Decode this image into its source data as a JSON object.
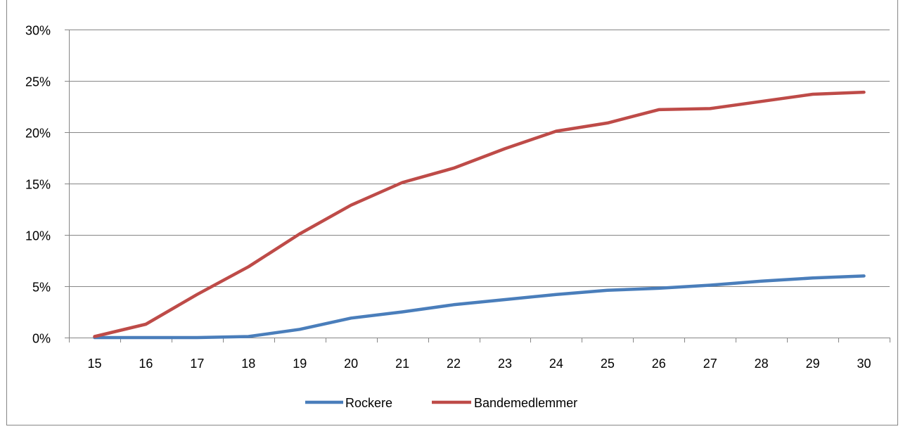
{
  "chart_data": {
    "type": "line",
    "title": "",
    "xlabel": "",
    "ylabel": "",
    "x": [
      15,
      16,
      17,
      18,
      19,
      20,
      21,
      22,
      23,
      24,
      25,
      26,
      27,
      28,
      29,
      30
    ],
    "ylim": [
      0,
      30
    ],
    "ytick_labels": [
      "0%",
      "5%",
      "10%",
      "15%",
      "20%",
      "25%",
      "30%"
    ],
    "ytick_values": [
      0,
      5,
      10,
      15,
      20,
      25,
      30
    ],
    "grid": true,
    "legend": "bottom",
    "series": [
      {
        "name": "Rockere",
        "color": "#4a7ebb",
        "values": [
          0.0,
          0.0,
          0.0,
          0.1,
          0.8,
          1.9,
          2.5,
          3.2,
          3.7,
          4.2,
          4.6,
          4.8,
          5.1,
          5.5,
          5.8,
          6.0
        ]
      },
      {
        "name": "Bandemedlemmer",
        "color": "#be4b48",
        "values": [
          0.1,
          1.3,
          4.2,
          6.9,
          10.1,
          12.9,
          15.1,
          16.5,
          18.4,
          20.1,
          20.9,
          22.2,
          22.3,
          23.0,
          23.7,
          23.9
        ]
      }
    ]
  }
}
